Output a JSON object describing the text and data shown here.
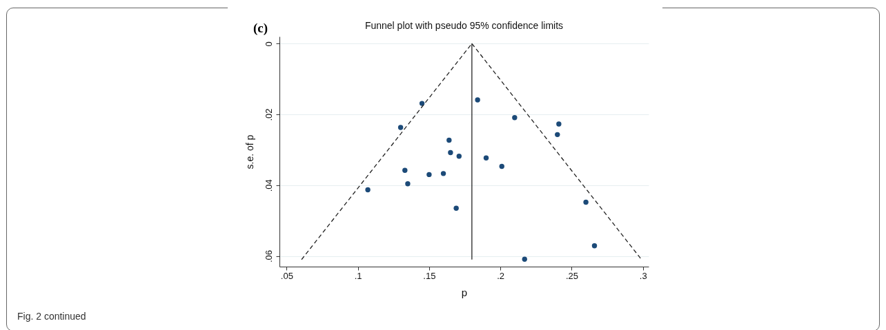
{
  "chart_data": {
    "type": "scatter",
    "title": "Funnel plot with pseudo 95% confidence limits",
    "xlabel": "p",
    "ylabel": "s.e. of p",
    "annotations": [
      "(c)",
      "Fig. 2 continued"
    ],
    "xlim": [
      0.045,
      0.304
    ],
    "ylim": [
      0.063,
      -0.002
    ],
    "xticks": [
      {
        "value": 0.05,
        "label": ".05"
      },
      {
        "value": 0.1,
        "label": ".1"
      },
      {
        "value": 0.15,
        "label": ".15"
      },
      {
        "value": 0.2,
        "label": ".2"
      },
      {
        "value": 0.25,
        "label": ".25"
      },
      {
        "value": 0.3,
        "label": ".3"
      }
    ],
    "yticks": [
      {
        "value": 0,
        "label": "0"
      },
      {
        "value": 0.02,
        "label": ".02"
      },
      {
        "value": 0.04,
        "label": ".04"
      },
      {
        "value": 0.06,
        "label": ".06"
      }
    ],
    "grid": "y",
    "series": [
      {
        "color": "#1c4a78",
        "marker": "circle",
        "x": [
          0.145,
          0.13,
          0.184,
          0.21,
          0.241,
          0.24,
          0.164,
          0.165,
          0.171,
          0.19,
          0.201,
          0.133,
          0.15,
          0.16,
          0.135,
          0.107,
          0.169,
          0.26,
          0.266,
          0.217
        ],
        "values": [
          0.0169,
          0.0237,
          0.0159,
          0.0209,
          0.0227,
          0.0257,
          0.0273,
          0.0308,
          0.0318,
          0.0323,
          0.0347,
          0.0358,
          0.037,
          0.0367,
          0.0396,
          0.0413,
          0.0465,
          0.0448,
          0.0571,
          0.0609
        ]
      },
      {
        "type": "line",
        "color": "#222222",
        "line_style": "dashed",
        "marker": "none",
        "x": [
          0.0605,
          0.18
        ],
        "values": [
          0.061,
          0
        ]
      },
      {
        "type": "line",
        "color": "#222222",
        "line_style": "dashed",
        "marker": "none",
        "x": [
          0.18,
          0.299
        ],
        "values": [
          0,
          0.061
        ]
      },
      {
        "type": "line",
        "color": "#222222",
        "line_style": "solid",
        "marker": "none",
        "x": [
          0.18,
          0.18
        ],
        "values": [
          0,
          0.061
        ]
      }
    ]
  }
}
